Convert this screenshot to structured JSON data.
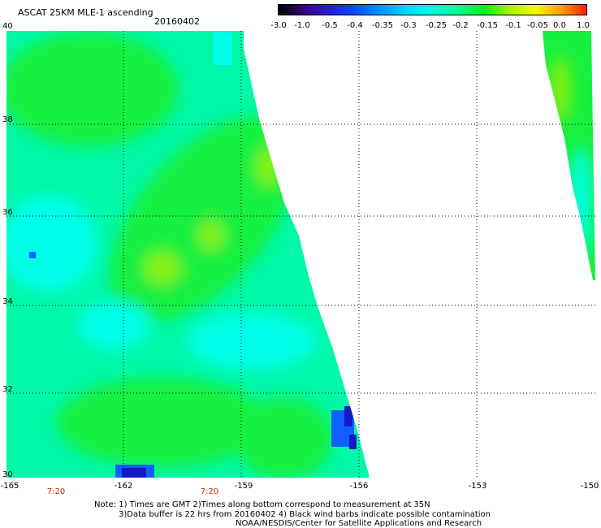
{
  "header": {
    "title": "ASCAT 25KM MLE-1 ascending",
    "date": "20160402"
  },
  "colorbar": {
    "labels": [
      "-3.0",
      "-1.0",
      "-0.5",
      "-0.4",
      "-0.35",
      "-0.3",
      "-0.25",
      "-0.2",
      "-0.15",
      "-0.1",
      "-0.05",
      "0.0",
      "1.0"
    ],
    "colors": [
      "#000000",
      "#3a007a",
      "#2a1ed6",
      "#0050ff",
      "#0096ff",
      "#00d8ff",
      "#00ffe0",
      "#00ff90",
      "#00f020",
      "#a8f000",
      "#f8f800",
      "#ffa000",
      "#ff2000"
    ]
  },
  "map": {
    "lat_labels": [
      "40",
      "38",
      "36",
      "34",
      "32",
      "30"
    ],
    "lon_labels": [
      "-165",
      "-162",
      "-159",
      "-156",
      "-153",
      "-150"
    ],
    "time_labels": [
      "7:20",
      "7:20"
    ],
    "colors": {
      "background": "#ffffff",
      "swath_base": "#00f8a8",
      "green": "#18f040",
      "lime": "#88f010",
      "cyan": "#00ffe8",
      "blue": "#1060ff",
      "darkblue": "#1818c8"
    }
  },
  "notes": {
    "line1": "Note: 1) Times are GMT 2)Times along bottom correspond to measurement at 35N",
    "line2": "3)Data buffer is 22 hrs from 20160402 4) Black wind barbs indicate possible contamination",
    "line3": "NOAA/NESDIS/Center for Satellite Applications and Research"
  }
}
